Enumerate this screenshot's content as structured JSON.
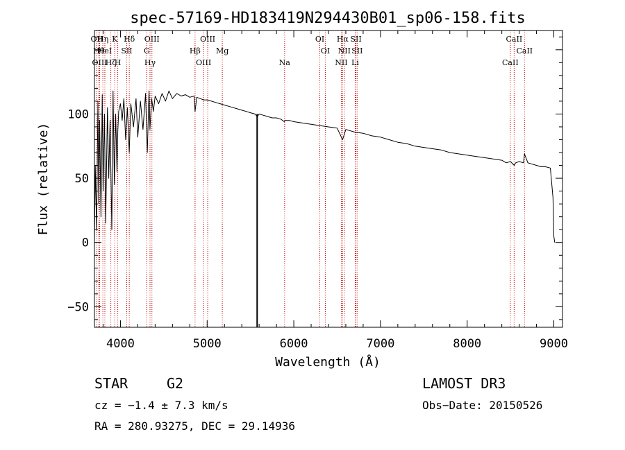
{
  "chart_data": {
    "type": "line",
    "title": "spec-57169-HD183419N294430B01_sp06-158.fits",
    "xlabel": "Wavelength (Å)",
    "ylabel": "Flux (relative)",
    "xlim": [
      3700,
      9100
    ],
    "ylim": [
      -66,
      165
    ],
    "xticks": [
      "4000",
      "5000",
      "6000",
      "7000",
      "8000",
      "9000"
    ],
    "yticks": [
      "-50",
      "0",
      "50",
      "100"
    ],
    "series": [
      {
        "name": "spectrum",
        "x": [
          3700,
          3710,
          3725,
          3740,
          3750,
          3760,
          3775,
          3790,
          3800,
          3815,
          3830,
          3850,
          3865,
          3880,
          3900,
          3915,
          3930,
          3945,
          3960,
          3968,
          3980,
          4000,
          4020,
          4040,
          4060,
          4080,
          4101,
          4120,
          4150,
          4180,
          4200,
          4230,
          4260,
          4290,
          4310,
          4330,
          4340,
          4360,
          4380,
          4400,
          4440,
          4480,
          4520,
          4560,
          4600,
          4650,
          4700,
          4750,
          4800,
          4850,
          4861,
          4880,
          4920,
          4960,
          5000,
          5050,
          5100,
          5150,
          5200,
          5250,
          5300,
          5350,
          5400,
          5450,
          5500,
          5550,
          5580,
          5600,
          5650,
          5700,
          5750,
          5800,
          5850,
          5890,
          5900,
          5950,
          6000,
          6100,
          6200,
          6300,
          6400,
          6500,
          6563,
          6600,
          6700,
          6800,
          6900,
          7000,
          7100,
          7200,
          7300,
          7400,
          7500,
          7600,
          7700,
          7800,
          7900,
          8000,
          8100,
          8200,
          8300,
          8400,
          8450,
          8500,
          8542,
          8560,
          8600,
          8650,
          8662,
          8700,
          8750,
          8800,
          8850,
          8900,
          8960,
          8990,
          9000,
          9010
        ],
        "y": [
          0,
          60,
          10,
          110,
          30,
          95,
          20,
          115,
          40,
          100,
          15,
          105,
          50,
          95,
          10,
          118,
          45,
          100,
          55,
          85,
          102,
          108,
          95,
          112,
          80,
          105,
          70,
          108,
          90,
          112,
          82,
          110,
          88,
          116,
          70,
          118,
          88,
          112,
          102,
          114,
          108,
          116,
          110,
          118,
          112,
          116,
          114,
          115,
          113,
          114,
          102,
          113,
          112,
          111,
          111,
          110,
          109,
          108,
          107,
          106,
          105,
          104,
          103,
          102,
          101,
          100,
          98,
          100,
          99,
          98,
          97,
          97,
          96,
          94,
          95,
          95,
          94,
          93,
          92,
          91,
          90,
          89,
          80,
          88,
          86,
          85,
          83,
          82,
          80,
          78,
          77,
          75,
          74,
          73,
          72,
          70,
          69,
          68,
          67,
          66,
          65,
          64,
          62,
          63,
          60,
          62,
          63,
          62,
          69,
          62,
          61,
          60,
          59,
          59,
          58,
          35,
          5,
          0
        ]
      }
    ],
    "spikes": [
      {
        "x": 5577,
        "y": -66
      }
    ],
    "lines": [
      {
        "name": "OII",
        "x": 3727
      },
      {
        "name": "Hθ",
        "x": 3750
      },
      {
        "name": "OIII",
        "x": 3760
      },
      {
        "name": "Hη",
        "x": 3797
      },
      {
        "name": "HeI",
        "x": 3820
      },
      {
        "name": "Hζ",
        "x": 3889
      },
      {
        "name": "K",
        "x": 3934
      },
      {
        "name": "SII",
        "x": 4072
      },
      {
        "name": "H",
        "x": 3969
      },
      {
        "name": "Hδ",
        "x": 4102
      },
      {
        "name": "G",
        "x": 4304
      },
      {
        "name": "Hγ",
        "x": 4341
      },
      {
        "name": "OIII",
        "x": 4363
      },
      {
        "name": "Hβ",
        "x": 4861
      },
      {
        "name": "OIII",
        "x": 4959
      },
      {
        "name": "OIII",
        "x": 5007
      },
      {
        "name": "Mg",
        "x": 5175
      },
      {
        "name": "Na",
        "x": 5894
      },
      {
        "name": "OI",
        "x": 6300
      },
      {
        "name": "OI",
        "x": 6364
      },
      {
        "name": "NII",
        "x": 6548
      },
      {
        "name": "Hα",
        "x": 6563
      },
      {
        "name": "NII",
        "x": 6583
      },
      {
        "name": "Li",
        "x": 6708
      },
      {
        "name": "SII",
        "x": 6717
      },
      {
        "name": "SII",
        "x": 6731
      },
      {
        "name": "CaII",
        "x": 8498
      },
      {
        "name": "CaII",
        "x": 8542
      },
      {
        "name": "CaII",
        "x": 8662
      }
    ],
    "line_color": "#cc0000"
  },
  "info": {
    "object_class": "STAR",
    "subclass": "G2",
    "survey": "LAMOST DR3",
    "redshift": "cz = −1.4 ± 7.3 km/s",
    "obs_date": "Obs−Date: 20150526",
    "coords": "RA = 280.93275, DEC =  29.14936"
  }
}
